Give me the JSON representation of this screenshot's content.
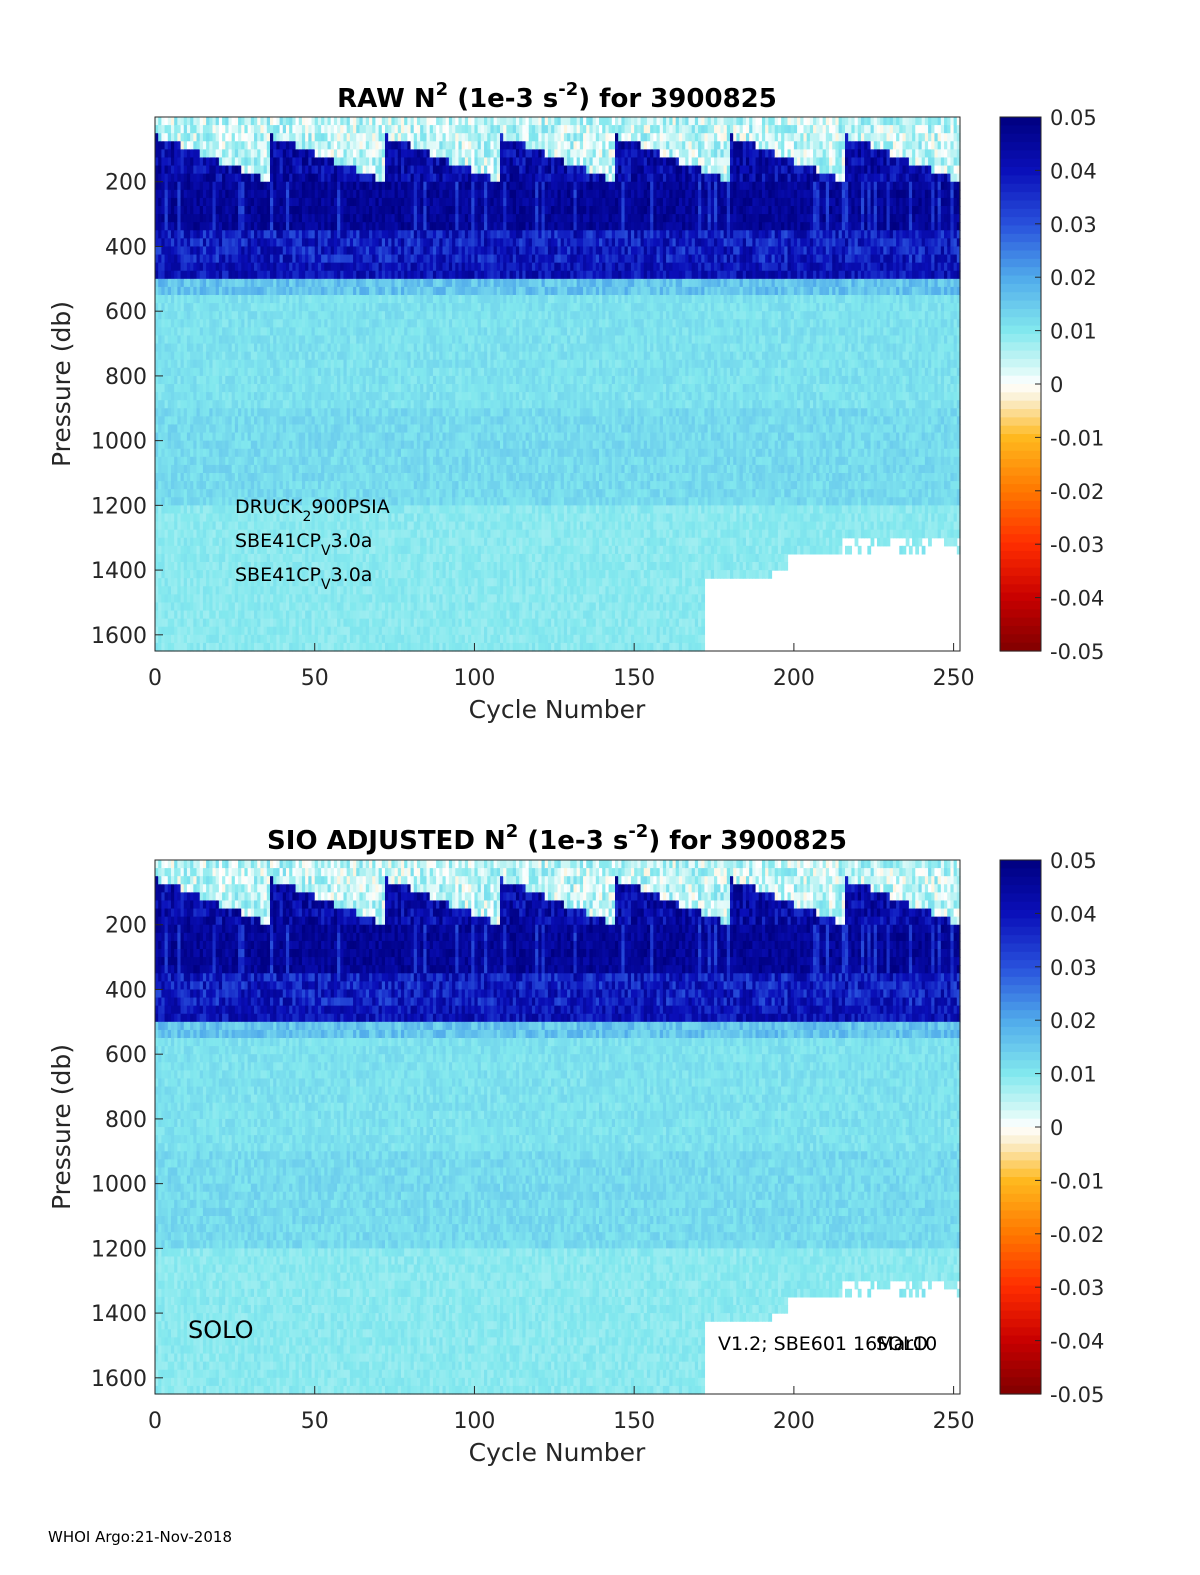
{
  "chart_data": [
    {
      "type": "heatmap",
      "title_main": "RAW N",
      "title_sup": "2",
      "title_mid": " (1e-3 s",
      "title_sup2": "-2",
      "title_end": ") for 3900825",
      "xlabel": "Cycle Number",
      "ylabel": "Pressure (db)",
      "xlim": [
        0,
        252
      ],
      "ylim": [
        1650,
        0
      ],
      "xticks": [
        0,
        50,
        100,
        150,
        200,
        250
      ],
      "yticks": [
        200,
        400,
        600,
        800,
        1000,
        1200,
        1400,
        1600
      ],
      "colorbar": {
        "colormap": "jet-with-neutral-zero",
        "range": [
          -0.05,
          0.05
        ],
        "ticks": [
          0.05,
          0.04,
          0.03,
          0.02,
          0.01,
          0,
          -0.01,
          -0.02,
          -0.03,
          -0.04,
          -0.05
        ]
      },
      "annotations": {
        "sensor1_a": "DRUCK",
        "sensor1_sub": "2",
        "sensor1_b": "900PSIA",
        "sensor2_a": "SBE41CP",
        "sensor2_sub": "V",
        "sensor2_b": "3.0a",
        "sensor3_a": "SBE41CP",
        "sensor3_sub": "V",
        "sensor3_b": "3.0a"
      }
    },
    {
      "type": "heatmap",
      "title_main": "SIO  ADJUSTED N",
      "title_sup": "2",
      "title_mid": " (1e-3 s",
      "title_sup2": "-2",
      "title_end": ") for 3900825",
      "xlabel": "Cycle Number",
      "ylabel": "Pressure (db)",
      "xlim": [
        0,
        252
      ],
      "ylim": [
        1650,
        0
      ],
      "xticks": [
        0,
        50,
        100,
        150,
        200,
        250
      ],
      "yticks": [
        200,
        400,
        600,
        800,
        1000,
        1200,
        1400,
        1600
      ],
      "colorbar": {
        "colormap": "jet-with-neutral-zero",
        "range": [
          -0.05,
          0.05
        ],
        "ticks": [
          0.05,
          0.04,
          0.03,
          0.02,
          0.01,
          0,
          -0.01,
          -0.02,
          -0.03,
          -0.04,
          -0.05
        ]
      },
      "annotations": {
        "platform": "SOLO",
        "firmware": "V1.2; SBE601 16Mar10",
        "firmware_overlap": "SOLO"
      },
      "top_marker_row": true
    }
  ],
  "footer": "WHOI Argo:21-Nov-2018"
}
